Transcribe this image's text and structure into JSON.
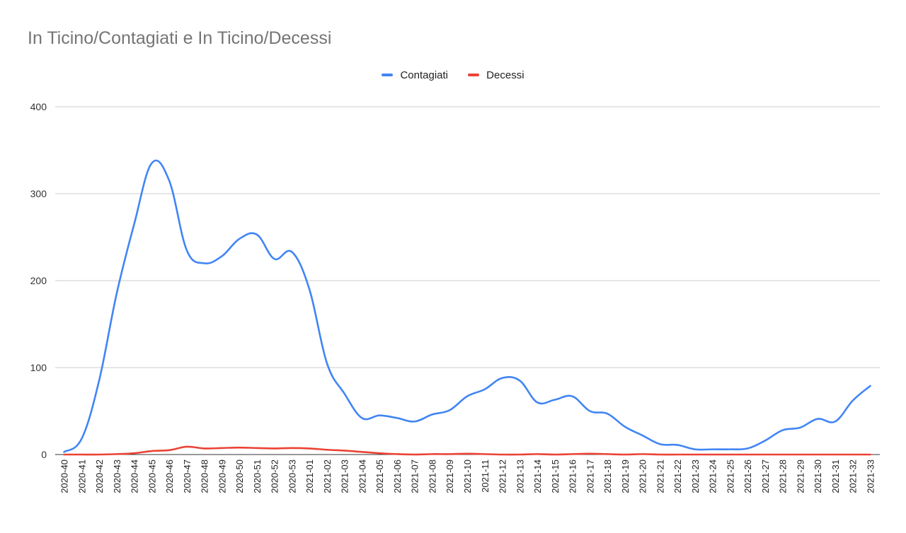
{
  "title": "In Ticino/Contagiati e In Ticino/Decessi",
  "chart_data": {
    "type": "line",
    "title": "In Ticino/Contagiati e In Ticino/Decessi",
    "xlabel": "",
    "ylabel": "",
    "ylim": [
      0,
      400
    ],
    "yticks": [
      "0",
      "100",
      "200",
      "300",
      "400"
    ],
    "grid": true,
    "legend_position": "top",
    "categories": [
      "2020-40",
      "2020-41",
      "2020-42",
      "2020-43",
      "2020-44",
      "2020-45",
      "2020-46",
      "2020-47",
      "2020-48",
      "2020-49",
      "2020-50",
      "2020-51",
      "2020-52",
      "2020-53",
      "2021-01",
      "2021-02",
      "2021-03",
      "2021-04",
      "2021-05",
      "2021-06",
      "2021-07",
      "2021-08",
      "2021-09",
      "2021-10",
      "2021-11",
      "2021-12",
      "2021-13",
      "2021-14",
      "2021-15",
      "2021-16",
      "2021-17",
      "2021-18",
      "2021-19",
      "2021-20",
      "2021-21",
      "2021-22",
      "2021-23",
      "2021-24",
      "2021-25",
      "2021-26",
      "2021-27",
      "2021-28",
      "2021-29",
      "2021-30",
      "2021-31",
      "2021-32",
      "2021-33"
    ],
    "series": [
      {
        "name": "Contagiati",
        "color": "#4285f4",
        "values": [
          3,
          18,
          85,
          185,
          265,
          335,
          315,
          235,
          220,
          228,
          248,
          253,
          225,
          233,
          190,
          105,
          70,
          42,
          45,
          42,
          38,
          46,
          51,
          67,
          75,
          88,
          85,
          60,
          63,
          67,
          50,
          47,
          32,
          22,
          12,
          11,
          6,
          6,
          6,
          7,
          16,
          28,
          31,
          41,
          38,
          62,
          79
        ]
      },
      {
        "name": "Decessi",
        "color": "#ea4335",
        "values": [
          0,
          0,
          0,
          0.5,
          1.5,
          4,
          5,
          9,
          7,
          7.5,
          8,
          7.5,
          7,
          7.5,
          7,
          5.5,
          4.5,
          3,
          1.5,
          0.5,
          0,
          0.5,
          0.5,
          1,
          0.5,
          0,
          0,
          0.5,
          0,
          0.5,
          1,
          0.5,
          0,
          0.5,
          0,
          0,
          0,
          0,
          0,
          0,
          0,
          0,
          0,
          0,
          0,
          0,
          0
        ]
      }
    ]
  }
}
